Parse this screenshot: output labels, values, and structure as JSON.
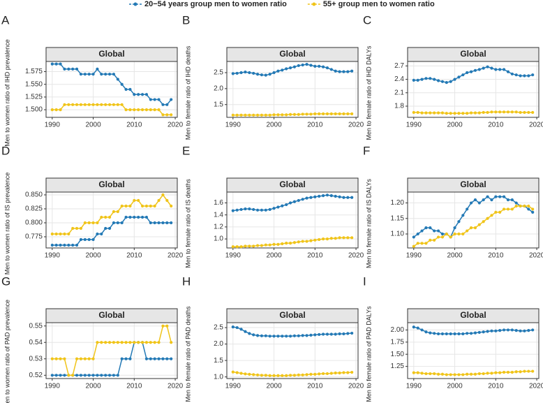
{
  "legend": {
    "series": [
      {
        "name": "20−54 years group men to women ratio",
        "color": "#2379b5"
      },
      {
        "name": "55+ group men to women ratio",
        "color": "#f0c419"
      }
    ]
  },
  "chart_data": [
    {
      "type": "line",
      "label": "A",
      "strip": "Global",
      "ylabel": "Men to women ratio of IHD prevalence",
      "x": [
        1990,
        1991,
        1992,
        1993,
        1994,
        1995,
        1996,
        1997,
        1998,
        1999,
        2000,
        2001,
        2002,
        2003,
        2004,
        2005,
        2006,
        2007,
        2008,
        2009,
        2010,
        2011,
        2012,
        2013,
        2014,
        2015,
        2016,
        2017,
        2018,
        2019
      ],
      "xlim": [
        1988.5,
        2020.5
      ],
      "xticks": [
        1990,
        2000,
        2010,
        2020
      ],
      "ylim": [
        1.485,
        1.595
      ],
      "yticks": [
        {
          "value": 1.5,
          "label": "1.500"
        },
        1.525,
        {
          "value": 1.55,
          "label": "1.550"
        },
        1.575
      ],
      "series": [
        {
          "values": [
            1.59,
            1.59,
            1.59,
            1.58,
            1.58,
            1.58,
            1.58,
            1.57,
            1.57,
            1.57,
            1.57,
            1.58,
            1.57,
            1.57,
            1.57,
            1.57,
            1.56,
            1.55,
            1.54,
            1.54,
            1.53,
            1.53,
            1.53,
            1.53,
            1.52,
            1.52,
            1.52,
            1.51,
            1.51,
            1.52
          ]
        },
        {
          "values": [
            1.5,
            1.5,
            1.5,
            1.51,
            1.51,
            1.51,
            1.51,
            1.51,
            1.51,
            1.51,
            1.51,
            1.51,
            1.51,
            1.51,
            1.51,
            1.51,
            1.51,
            1.51,
            1.5,
            1.5,
            1.5,
            1.5,
            1.5,
            1.5,
            1.5,
            1.5,
            1.5,
            1.49,
            1.49,
            1.49
          ]
        }
      ]
    },
    {
      "type": "line",
      "label": "B",
      "strip": "Global",
      "ylabel": "Men to female ratio of IHD deaths",
      "x": [
        1990,
        1991,
        1992,
        1993,
        1994,
        1995,
        1996,
        1997,
        1998,
        1999,
        2000,
        2001,
        2002,
        2003,
        2004,
        2005,
        2006,
        2007,
        2008,
        2009,
        2010,
        2011,
        2012,
        2013,
        2014,
        2015,
        2016,
        2017,
        2018,
        2019
      ],
      "xlim": [
        1988.5,
        2020.5
      ],
      "xticks": [
        1990,
        2000,
        2010,
        2020
      ],
      "ylim": [
        1.1,
        2.85
      ],
      "yticks": [
        1.5,
        {
          "value": 2,
          "label": "2.0"
        },
        2.5
      ],
      "series": [
        {
          "values": [
            2.47,
            2.48,
            2.5,
            2.52,
            2.5,
            2.48,
            2.45,
            2.43,
            2.42,
            2.45,
            2.5,
            2.55,
            2.58,
            2.62,
            2.65,
            2.68,
            2.72,
            2.74,
            2.76,
            2.73,
            2.7,
            2.7,
            2.68,
            2.65,
            2.6,
            2.55,
            2.53,
            2.53,
            2.53,
            2.55
          ]
        },
        {
          "values": [
            1.17,
            1.17,
            1.17,
            1.17,
            1.17,
            1.17,
            1.17,
            1.17,
            1.17,
            1.17,
            1.18,
            1.18,
            1.18,
            1.18,
            1.19,
            1.19,
            1.19,
            1.2,
            1.2,
            1.2,
            1.21,
            1.21,
            1.21,
            1.21,
            1.21,
            1.21,
            1.21,
            1.21,
            1.21,
            1.21
          ]
        }
      ]
    },
    {
      "type": "line",
      "label": "C",
      "strip": "Global",
      "ylabel": "Men to female ratio of IHD DALYs",
      "x": [
        1990,
        1991,
        1992,
        1993,
        1994,
        1995,
        1996,
        1997,
        1998,
        1999,
        2000,
        2001,
        2002,
        2003,
        2004,
        2005,
        2006,
        2007,
        2008,
        2009,
        2010,
        2011,
        2012,
        2013,
        2014,
        2015,
        2016,
        2017,
        2018,
        2019
      ],
      "xlim": [
        1988.5,
        2020.5
      ],
      "xticks": [
        1990,
        2000,
        2010,
        2020
      ],
      "ylim": [
        1.55,
        2.8
      ],
      "yticks": [
        1.8,
        2.1,
        2.4,
        2.7
      ],
      "series": [
        {
          "values": [
            2.38,
            2.38,
            2.4,
            2.42,
            2.42,
            2.4,
            2.37,
            2.35,
            2.33,
            2.35,
            2.4,
            2.45,
            2.5,
            2.55,
            2.57,
            2.6,
            2.62,
            2.65,
            2.68,
            2.65,
            2.62,
            2.62,
            2.62,
            2.57,
            2.52,
            2.5,
            2.48,
            2.48,
            2.48,
            2.5
          ]
        },
        {
          "values": [
            1.66,
            1.66,
            1.65,
            1.65,
            1.65,
            1.65,
            1.65,
            1.65,
            1.64,
            1.64,
            1.64,
            1.64,
            1.64,
            1.64,
            1.65,
            1.65,
            1.65,
            1.66,
            1.66,
            1.67,
            1.67,
            1.67,
            1.67,
            1.67,
            1.67,
            1.67,
            1.66,
            1.66,
            1.66,
            1.66
          ]
        }
      ]
    },
    {
      "type": "line",
      "label": "D",
      "strip": "Global",
      "ylabel": "Men to women ratio of IS prevalence",
      "x": [
        1990,
        1991,
        1992,
        1993,
        1994,
        1995,
        1996,
        1997,
        1998,
        1999,
        2000,
        2001,
        2002,
        2003,
        2004,
        2005,
        2006,
        2007,
        2008,
        2009,
        2010,
        2011,
        2012,
        2013,
        2014,
        2015,
        2016,
        2017,
        2018,
        2019
      ],
      "xlim": [
        1988.5,
        2020.5
      ],
      "xticks": [
        1990,
        2000,
        2010,
        2020
      ],
      "ylim": [
        0.755,
        0.855
      ],
      "yticks": [
        0.775,
        {
          "value": 0.8,
          "label": "0.800"
        },
        0.825,
        {
          "value": 0.85,
          "label": "0.850"
        }
      ],
      "series": [
        {
          "values": [
            0.76,
            0.76,
            0.76,
            0.76,
            0.76,
            0.76,
            0.76,
            0.77,
            0.77,
            0.77,
            0.77,
            0.78,
            0.78,
            0.79,
            0.79,
            0.8,
            0.8,
            0.8,
            0.81,
            0.81,
            0.81,
            0.81,
            0.81,
            0.81,
            0.8,
            0.8,
            0.8,
            0.8,
            0.8,
            0.8
          ]
        },
        {
          "values": [
            0.78,
            0.78,
            0.78,
            0.78,
            0.78,
            0.79,
            0.79,
            0.79,
            0.8,
            0.8,
            0.8,
            0.8,
            0.81,
            0.81,
            0.81,
            0.82,
            0.82,
            0.83,
            0.83,
            0.83,
            0.84,
            0.84,
            0.83,
            0.83,
            0.83,
            0.83,
            0.84,
            0.85,
            0.84,
            0.83
          ]
        }
      ]
    },
    {
      "type": "line",
      "label": "E",
      "strip": "Global",
      "ylabel": "Men to female ratio of IS deaths",
      "x": [
        1990,
        1991,
        1992,
        1993,
        1994,
        1995,
        1996,
        1997,
        1998,
        1999,
        2000,
        2001,
        2002,
        2003,
        2004,
        2005,
        2006,
        2007,
        2008,
        2009,
        2010,
        2011,
        2012,
        2013,
        2014,
        2015,
        2016,
        2017,
        2018,
        2019
      ],
      "xlim": [
        1988.5,
        2020.5
      ],
      "xticks": [
        1990,
        2000,
        2010,
        2020
      ],
      "ylim": [
        0.85,
        1.78
      ],
      "yticks": [
        {
          "value": 1,
          "label": "1.0"
        },
        1.2,
        1.4,
        1.6
      ],
      "series": [
        {
          "values": [
            1.47,
            1.48,
            1.49,
            1.5,
            1.5,
            1.49,
            1.48,
            1.48,
            1.48,
            1.49,
            1.51,
            1.53,
            1.55,
            1.57,
            1.6,
            1.62,
            1.64,
            1.66,
            1.68,
            1.69,
            1.7,
            1.71,
            1.72,
            1.73,
            1.72,
            1.71,
            1.7,
            1.69,
            1.69,
            1.69
          ]
        },
        {
          "values": [
            0.87,
            0.87,
            0.87,
            0.88,
            0.88,
            0.88,
            0.89,
            0.89,
            0.9,
            0.9,
            0.91,
            0.91,
            0.92,
            0.93,
            0.93,
            0.94,
            0.95,
            0.96,
            0.96,
            0.97,
            0.98,
            0.99,
            1.0,
            1.0,
            1.01,
            1.01,
            1.02,
            1.02,
            1.02,
            1.02
          ]
        }
      ]
    },
    {
      "type": "line",
      "label": "F",
      "strip": "Global",
      "ylabel": "Men to female ratio of IS DALYs",
      "x": [
        1990,
        1991,
        1992,
        1993,
        1994,
        1995,
        1996,
        1997,
        1998,
        1999,
        2000,
        2001,
        2002,
        2003,
        2004,
        2005,
        2006,
        2007,
        2008,
        2009,
        2010,
        2011,
        2012,
        2013,
        2014,
        2015,
        2016,
        2017,
        2018,
        2019
      ],
      "xlim": [
        1988.5,
        2020.5
      ],
      "xticks": [
        1990,
        2000,
        2010,
        2020
      ],
      "ylim": [
        1.055,
        1.235
      ],
      "yticks": [
        {
          "value": 1.1,
          "label": "1.10"
        },
        1.15,
        {
          "value": 1.2,
          "label": "1.20"
        }
      ],
      "series": [
        {
          "values": [
            1.09,
            1.1,
            1.11,
            1.12,
            1.12,
            1.11,
            1.11,
            1.1,
            1.1,
            1.09,
            1.12,
            1.14,
            1.16,
            1.18,
            1.2,
            1.21,
            1.2,
            1.21,
            1.22,
            1.21,
            1.22,
            1.22,
            1.22,
            1.21,
            1.21,
            1.2,
            1.19,
            1.19,
            1.18,
            1.17
          ]
        },
        {
          "values": [
            1.06,
            1.07,
            1.07,
            1.07,
            1.08,
            1.08,
            1.09,
            1.09,
            1.1,
            1.09,
            1.1,
            1.1,
            1.1,
            1.11,
            1.12,
            1.12,
            1.13,
            1.14,
            1.15,
            1.16,
            1.17,
            1.17,
            1.18,
            1.18,
            1.18,
            1.19,
            1.19,
            1.19,
            1.19,
            1.18
          ]
        }
      ]
    },
    {
      "type": "line",
      "label": "G",
      "strip": "Global",
      "ylabel": "Men to women ratio of PAD prevalence",
      "x": [
        1990,
        1991,
        1992,
        1993,
        1994,
        1995,
        1996,
        1997,
        1998,
        1999,
        2000,
        2001,
        2002,
        2003,
        2004,
        2005,
        2006,
        2007,
        2008,
        2009,
        2010,
        2011,
        2012,
        2013,
        2014,
        2015,
        2016,
        2017,
        2018,
        2019
      ],
      "xlim": [
        1988.5,
        2020.5
      ],
      "xticks": [
        1990,
        2000,
        2010,
        2020
      ],
      "ylim": [
        0.518,
        0.552
      ],
      "yticks": [
        0.52,
        0.53,
        0.54,
        0.55
      ],
      "series": [
        {
          "values": [
            0.52,
            0.52,
            0.52,
            0.52,
            0.52,
            0.52,
            0.52,
            0.52,
            0.52,
            0.52,
            0.52,
            0.52,
            0.52,
            0.52,
            0.52,
            0.52,
            0.52,
            0.53,
            0.53,
            0.53,
            0.54,
            0.54,
            0.54,
            0.53,
            0.53,
            0.53,
            0.53,
            0.53,
            0.53,
            0.53
          ]
        },
        {
          "values": [
            0.53,
            0.53,
            0.53,
            0.53,
            0.52,
            0.52,
            0.53,
            0.53,
            0.53,
            0.53,
            0.53,
            0.54,
            0.54,
            0.54,
            0.54,
            0.54,
            0.54,
            0.54,
            0.54,
            0.54,
            0.54,
            0.54,
            0.54,
            0.54,
            0.54,
            0.54,
            0.54,
            0.55,
            0.55,
            0.54
          ]
        }
      ]
    },
    {
      "type": "line",
      "label": "H",
      "strip": "Global",
      "ylabel": "Men to female ratio of PAD deaths",
      "x": [
        1990,
        1991,
        1992,
        1993,
        1994,
        1995,
        1996,
        1997,
        1998,
        1999,
        2000,
        2001,
        2002,
        2003,
        2004,
        2005,
        2006,
        2007,
        2008,
        2009,
        2010,
        2011,
        2012,
        2013,
        2014,
        2015,
        2016,
        2017,
        2018,
        2019
      ],
      "xlim": [
        1988.5,
        2020.5
      ],
      "xticks": [
        1990,
        2000,
        2010,
        2020
      ],
      "ylim": [
        0.95,
        2.65
      ],
      "yticks": [
        {
          "value": 1,
          "label": "1.0"
        },
        1.5,
        {
          "value": 2,
          "label": "2.0"
        },
        2.5
      ],
      "series": [
        {
          "values": [
            2.52,
            2.5,
            2.45,
            2.38,
            2.32,
            2.28,
            2.26,
            2.25,
            2.25,
            2.24,
            2.24,
            2.24,
            2.24,
            2.24,
            2.24,
            2.25,
            2.25,
            2.26,
            2.26,
            2.27,
            2.28,
            2.29,
            2.3,
            2.3,
            2.3,
            2.3,
            2.31,
            2.31,
            2.32,
            2.33
          ]
        },
        {
          "values": [
            1.15,
            1.13,
            1.11,
            1.09,
            1.08,
            1.07,
            1.06,
            1.05,
            1.05,
            1.04,
            1.04,
            1.04,
            1.04,
            1.04,
            1.05,
            1.05,
            1.06,
            1.06,
            1.07,
            1.08,
            1.08,
            1.09,
            1.1,
            1.1,
            1.11,
            1.12,
            1.12,
            1.13,
            1.13,
            1.14
          ]
        }
      ]
    },
    {
      "type": "line",
      "label": "I",
      "strip": "Global",
      "ylabel": "Men to female ratio of PAD DALYs",
      "x": [
        1990,
        1991,
        1992,
        1993,
        1994,
        1995,
        1996,
        1997,
        1998,
        1999,
        2000,
        2001,
        2002,
        2003,
        2004,
        2005,
        2006,
        2007,
        2008,
        2009,
        2010,
        2011,
        2012,
        2013,
        2014,
        2015,
        2016,
        2017,
        2018,
        2019
      ],
      "xlim": [
        1988.5,
        2020.5
      ],
      "xticks": [
        1990,
        2000,
        2010,
        2020
      ],
      "ylim": [
        1.0,
        2.15
      ],
      "yticks": [
        1.25,
        {
          "value": 1.5,
          "label": "1.50"
        },
        1.75,
        {
          "value": 2,
          "label": "2.00"
        }
      ],
      "series": [
        {
          "values": [
            2.06,
            2.04,
            2.0,
            1.96,
            1.94,
            1.93,
            1.92,
            1.92,
            1.92,
            1.92,
            1.92,
            1.92,
            1.92,
            1.93,
            1.93,
            1.94,
            1.95,
            1.96,
            1.97,
            1.98,
            1.98,
            1.99,
            2.0,
            2.0,
            2.0,
            1.99,
            1.98,
            1.98,
            1.99,
            2.0
          ]
        },
        {
          "values": [
            1.12,
            1.12,
            1.11,
            1.1,
            1.1,
            1.1,
            1.09,
            1.09,
            1.08,
            1.08,
            1.08,
            1.08,
            1.08,
            1.09,
            1.09,
            1.09,
            1.1,
            1.1,
            1.11,
            1.11,
            1.12,
            1.12,
            1.13,
            1.13,
            1.13,
            1.14,
            1.14,
            1.15,
            1.15,
            1.15
          ]
        }
      ]
    }
  ]
}
